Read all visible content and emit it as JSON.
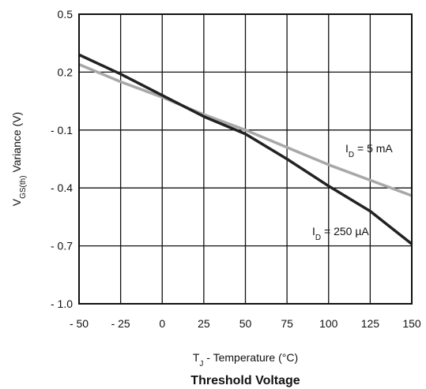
{
  "chart_data": {
    "type": "line",
    "title": "",
    "caption": "Threshold Voltage",
    "xlabel": {
      "main": "T",
      "sub": "J",
      "rest": " - Temperature (°C)"
    },
    "ylabel": {
      "main": "V",
      "sub": "GS(th)",
      "rest": " Variance (V)"
    },
    "xlim": [
      -50,
      150
    ],
    "ylim": [
      -1.0,
      0.5
    ],
    "x_ticks": [
      -50,
      -25,
      0,
      25,
      50,
      75,
      100,
      125,
      150
    ],
    "x_tick_labels": [
      "- 50",
      "- 25",
      "0",
      "25",
      "50",
      "75",
      "100",
      "125",
      "150"
    ],
    "y_ticks": [
      0.5,
      0.2,
      -0.1,
      -0.4,
      -0.7,
      -1.0
    ],
    "y_tick_labels": [
      "0.5",
      "0.2",
      "- 0.1",
      "- 0.4",
      "- 0.7",
      "- 1.0"
    ],
    "grid": true,
    "series": [
      {
        "name": "I_D = 5 mA",
        "label_main": "I",
        "label_sub": "D",
        "label_rest": " = 5 mA",
        "color": "#a8a8a8",
        "x": [
          -50,
          -25,
          0,
          25,
          50,
          75,
          100,
          125,
          150
        ],
        "y": [
          0.24,
          0.15,
          0.07,
          -0.02,
          -0.1,
          -0.19,
          -0.28,
          -0.36,
          -0.44
        ]
      },
      {
        "name": "I_D = 250 µA",
        "label_main": "I",
        "label_sub": "D",
        "label_rest": " = 250 µA",
        "color": "#222222",
        "x": [
          -50,
          -25,
          0,
          25,
          50,
          75,
          100,
          125,
          150
        ],
        "y": [
          0.29,
          0.19,
          0.08,
          -0.03,
          -0.12,
          -0.25,
          -0.39,
          -0.52,
          -0.69
        ]
      }
    ]
  }
}
